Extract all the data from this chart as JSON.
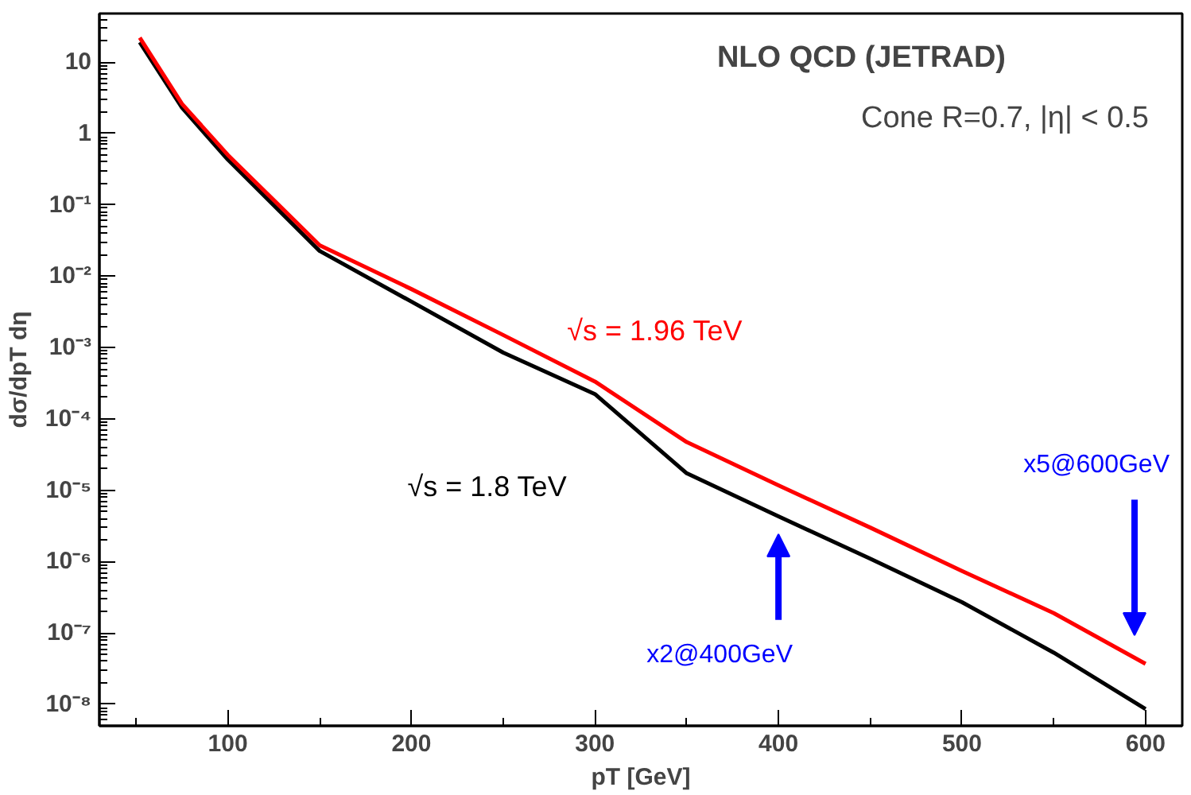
{
  "chart_data": {
    "type": "line",
    "title": "NLO QCD (JETRAD)",
    "subtitle": "Cone R=0.7, |η| < 0.5",
    "xlabel": "pT [GeV]",
    "ylabel": "dσ/dpT dη",
    "log": "y",
    "grid": false,
    "marker": "none",
    "line_style": "solid",
    "xlim": [
      30,
      620
    ],
    "ylim": [
      5e-09,
      48
    ],
    "xticks": [
      100,
      200,
      300,
      400,
      500,
      600
    ],
    "yticks": [
      {
        "value": 10,
        "label": "10"
      },
      {
        "value": 1,
        "label": "1"
      },
      {
        "value": 0.1,
        "label": "10⁻¹"
      },
      {
        "value": 0.01,
        "label": "10⁻²"
      },
      {
        "value": 0.001,
        "label": "10⁻³"
      },
      {
        "value": 0.0001,
        "label": "10⁻⁴"
      },
      {
        "value": 1e-05,
        "label": "10⁻⁵"
      },
      {
        "value": 1e-06,
        "label": "10⁻⁶"
      },
      {
        "value": 1e-07,
        "label": "10⁻⁷"
      },
      {
        "value": 1e-08,
        "label": "10⁻⁸"
      }
    ],
    "x": [
      52,
      75,
      100,
      150,
      200,
      250,
      300,
      350,
      400,
      450,
      500,
      550,
      600
    ],
    "series": [
      {
        "name": "√s = 1.8 TeV",
        "color": "#000000",
        "values": [
          19,
          2.3,
          0.43,
          0.0226,
          0.0044,
          0.00085,
          0.000223,
          1.73e-05,
          4.3e-06,
          1.1e-06,
          2.7e-07,
          5.3e-08,
          8.6e-09
        ]
      },
      {
        "name": "√s = 1.96 TeV",
        "color": "#ff0000",
        "values": [
          22,
          2.6,
          0.5,
          0.0272,
          0.0066,
          0.0015,
          0.000334,
          4.74e-05,
          1.17e-05,
          3e-06,
          7.4e-07,
          1.9e-07,
          3.7e-08
        ]
      }
    ],
    "annotations": [
      "x2@400GeV",
      "x5@600GeV"
    ]
  }
}
